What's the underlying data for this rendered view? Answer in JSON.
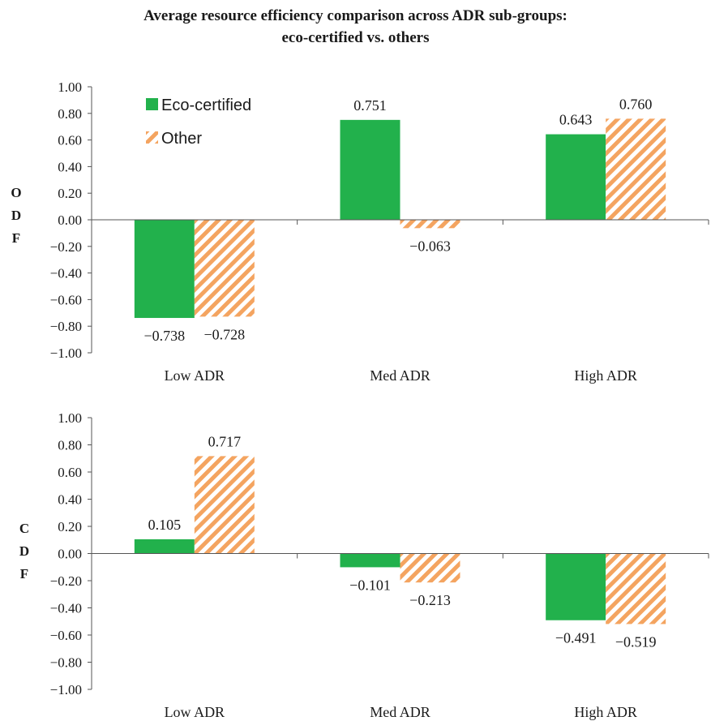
{
  "title_line1": "Average resource efficiency comparison across ADR sub-groups:",
  "title_line2": "eco-certified vs. others",
  "colors": {
    "eco": "#22b14c",
    "other": "#f4a460",
    "axis": "#555555"
  },
  "chart_data": [
    {
      "type": "bar",
      "ylabel": "ODF",
      "categories": [
        "Low ADR",
        "Med ADR",
        "High ADR"
      ],
      "series": [
        {
          "name": "Eco-certified",
          "values": [
            -0.738,
            0.751,
            0.643
          ],
          "labels": [
            "−0.738",
            "0.751",
            "0.643"
          ]
        },
        {
          "name": "Other",
          "values": [
            -0.728,
            -0.063,
            0.76
          ],
          "labels": [
            "−0.728",
            "−0.063",
            "0.760"
          ]
        }
      ],
      "ylim": [
        -1.0,
        1.0
      ],
      "yticks": [
        "1.00",
        "0.80",
        "0.60",
        "0.40",
        "0.20",
        "0.00",
        "−0.20",
        "−0.40",
        "−0.60",
        "−0.80",
        "−1.00"
      ],
      "grid": false,
      "legend": "top-left"
    },
    {
      "type": "bar",
      "ylabel": "CDF",
      "categories": [
        "Low ADR",
        "Med ADR",
        "High ADR"
      ],
      "series": [
        {
          "name": "Eco-certified",
          "values": [
            0.105,
            -0.101,
            -0.491
          ],
          "labels": [
            "0.105",
            "−0.101",
            "−0.491"
          ]
        },
        {
          "name": "Other",
          "values": [
            0.717,
            -0.213,
            -0.519
          ],
          "labels": [
            "0.717",
            "−0.213",
            "−0.519"
          ]
        }
      ],
      "ylim": [
        -1.0,
        1.0
      ],
      "yticks": [
        "1.00",
        "0.80",
        "0.60",
        "0.40",
        "0.20",
        "0.00",
        "−0.20",
        "−0.40",
        "−0.60",
        "−0.80",
        "−1.00"
      ],
      "grid": false,
      "legend": "none"
    }
  ]
}
